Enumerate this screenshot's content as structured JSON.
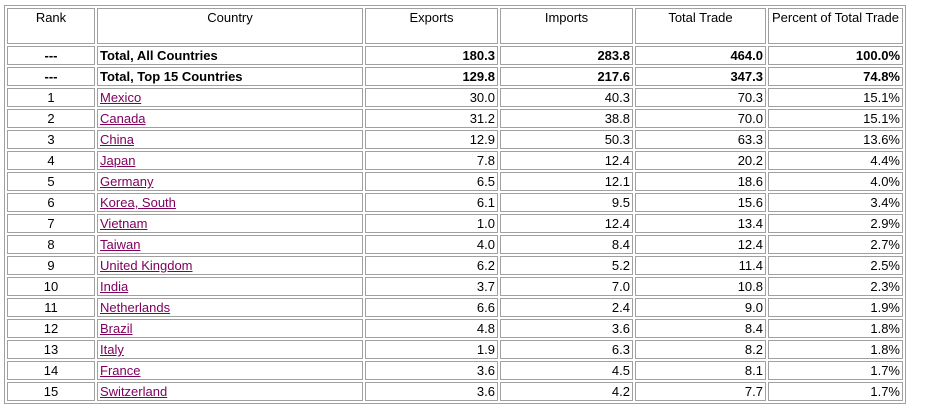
{
  "table": {
    "headers": [
      "Rank",
      "Country",
      "Exports",
      "Imports",
      "Total Trade",
      "Percent of Total Trade"
    ],
    "totals": [
      {
        "rank": "---",
        "country": "Total, All Countries",
        "exports": "180.3",
        "imports": "283.8",
        "total": "464.0",
        "percent": "100.0%"
      },
      {
        "rank": "---",
        "country": "Total, Top 15 Countries",
        "exports": "129.8",
        "imports": "217.6",
        "total": "347.3",
        "percent": "74.8%"
      }
    ],
    "rows": [
      {
        "rank": "1",
        "country": "Mexico",
        "exports": "30.0",
        "imports": "40.3",
        "total": "70.3",
        "percent": "15.1%"
      },
      {
        "rank": "2",
        "country": "Canada",
        "exports": "31.2",
        "imports": "38.8",
        "total": "70.0",
        "percent": "15.1%"
      },
      {
        "rank": "3",
        "country": "China",
        "exports": "12.9",
        "imports": "50.3",
        "total": "63.3",
        "percent": "13.6%"
      },
      {
        "rank": "4",
        "country": "Japan",
        "exports": "7.8",
        "imports": "12.4",
        "total": "20.2",
        "percent": "4.4%"
      },
      {
        "rank": "5",
        "country": "Germany",
        "exports": "6.5",
        "imports": "12.1",
        "total": "18.6",
        "percent": "4.0%"
      },
      {
        "rank": "6",
        "country": "Korea, South",
        "exports": "6.1",
        "imports": "9.5",
        "total": "15.6",
        "percent": "3.4%"
      },
      {
        "rank": "7",
        "country": "Vietnam",
        "exports": "1.0",
        "imports": "12.4",
        "total": "13.4",
        "percent": "2.9%"
      },
      {
        "rank": "8",
        "country": "Taiwan",
        "exports": "4.0",
        "imports": "8.4",
        "total": "12.4",
        "percent": "2.7%"
      },
      {
        "rank": "9",
        "country": "United Kingdom",
        "exports": "6.2",
        "imports": "5.2",
        "total": "11.4",
        "percent": "2.5%"
      },
      {
        "rank": "10",
        "country": "India",
        "exports": "3.7",
        "imports": "7.0",
        "total": "10.8",
        "percent": "2.3%"
      },
      {
        "rank": "11",
        "country": "Netherlands",
        "exports": "6.6",
        "imports": "2.4",
        "total": "9.0",
        "percent": "1.9%"
      },
      {
        "rank": "12",
        "country": "Brazil",
        "exports": "4.8",
        "imports": "3.6",
        "total": "8.4",
        "percent": "1.8%"
      },
      {
        "rank": "13",
        "country": "Italy",
        "exports": "1.9",
        "imports": "6.3",
        "total": "8.2",
        "percent": "1.8%"
      },
      {
        "rank": "14",
        "country": "France",
        "exports": "3.6",
        "imports": "4.5",
        "total": "8.1",
        "percent": "1.7%"
      },
      {
        "rank": "15",
        "country": "Switzerland",
        "exports": "3.6",
        "imports": "4.2",
        "total": "7.7",
        "percent": "1.7%"
      }
    ]
  },
  "colors": {
    "link": "#800060",
    "border": "#a0a0a0"
  }
}
